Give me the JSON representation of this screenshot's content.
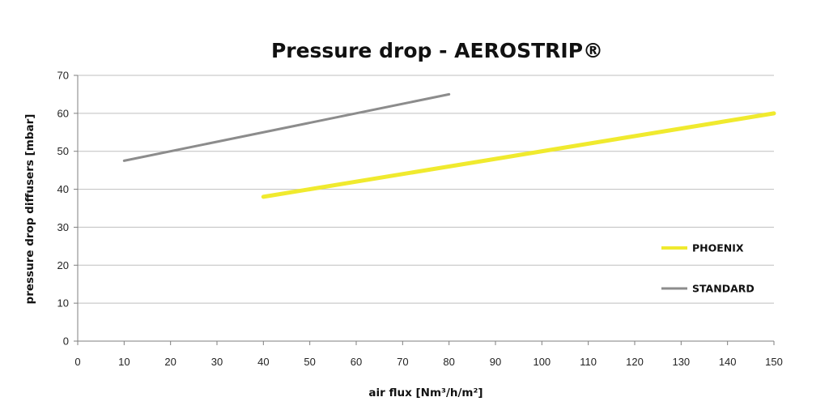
{
  "chart_data": {
    "type": "line",
    "title": "Pressure drop - AEROSTRIP®",
    "xlabel": "air flux [Nm³/h/m²]",
    "ylabel": "pressure drop diffusers [mbar]",
    "xlim": [
      0,
      150
    ],
    "ylim": [
      0,
      70
    ],
    "xticks": [
      0,
      10,
      20,
      30,
      40,
      50,
      60,
      70,
      80,
      90,
      100,
      110,
      120,
      130,
      140,
      150
    ],
    "yticks": [
      0,
      10,
      20,
      30,
      40,
      50,
      60,
      70
    ],
    "grid": "horizontal",
    "legend_position": "right",
    "series": [
      {
        "name": "PHOENIX",
        "color": "#f0ea2e",
        "x": [
          40,
          150
        ],
        "y": [
          38,
          60
        ]
      },
      {
        "name": "STANDARD",
        "color": "#8c8c8c",
        "x": [
          10,
          80
        ],
        "y": [
          47.5,
          65
        ]
      }
    ]
  }
}
